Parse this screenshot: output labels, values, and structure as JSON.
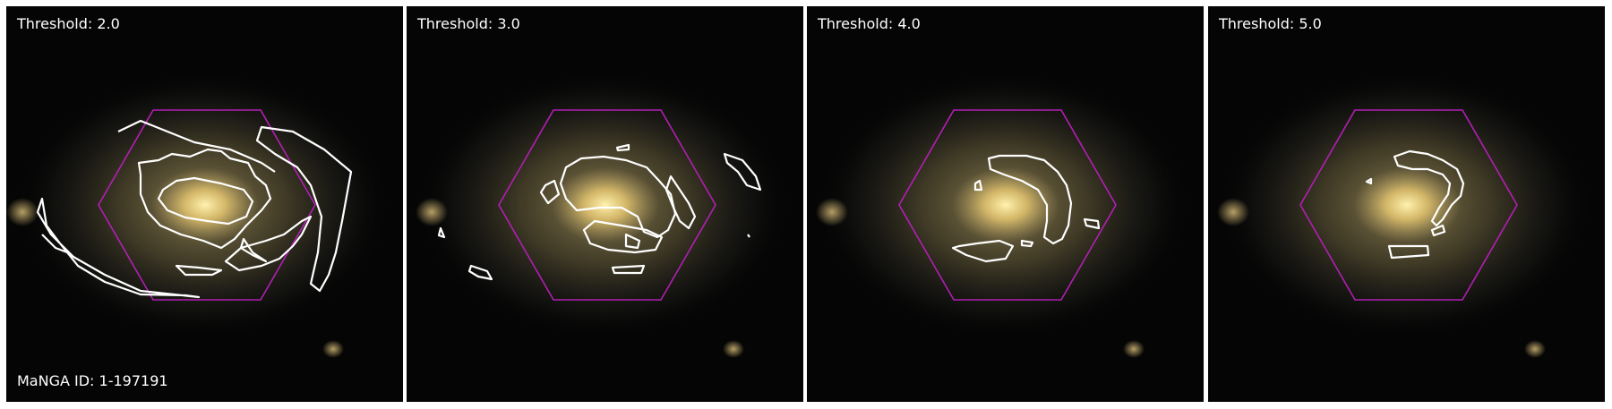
{
  "manga_id_label": "MaNGA ID: 1-197191",
  "panels": [
    {
      "label": "Threshold: 2.0"
    },
    {
      "label": "Threshold: 3.0"
    },
    {
      "label": "Threshold: 4.0"
    },
    {
      "label": "Threshold: 5.0"
    }
  ],
  "colors": {
    "background": "#050505",
    "galaxy_core": "#fbe7a0",
    "galaxy_halo": "#8a7a4c",
    "hexagon": "#b21fb3",
    "contour": "#ffffff",
    "label_text": "#ffffff"
  }
}
